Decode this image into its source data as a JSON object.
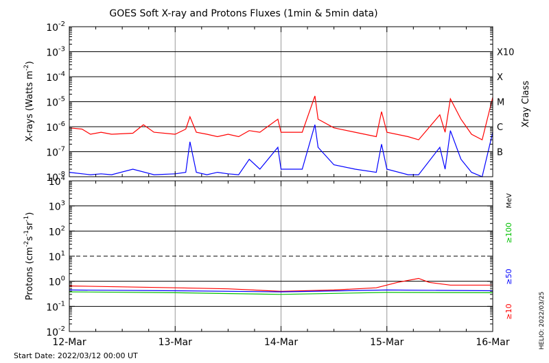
{
  "chart_data": [
    {
      "type": "line",
      "title": "GOES Soft X-ray and Protons Fluxes   (1min & 5min data)",
      "ylabel_main": "X-rays (Watts m",
      "ylabel_exp": "-2",
      "ylabel_close": ")",
      "y_scale": "log",
      "ylim": [
        1e-08,
        0.01
      ],
      "y_ticks": [
        {
          "base": "10",
          "exp": "-8"
        },
        {
          "base": "10",
          "exp": "-7"
        },
        {
          "base": "10",
          "exp": "-6"
        },
        {
          "base": "10",
          "exp": "-5"
        },
        {
          "base": "10",
          "exp": "-4"
        },
        {
          "base": "10",
          "exp": "-3"
        },
        {
          "base": "10",
          "exp": "-2"
        }
      ],
      "right_label": "Xray Class",
      "class_labels": [
        "B",
        "C",
        "M",
        "X",
        "X10"
      ],
      "grid": true,
      "series": [
        {
          "color": "#ff0000",
          "x": [
            0,
            0.12,
            0.2,
            0.3,
            0.4,
            0.6,
            0.7,
            0.8,
            1.0,
            1.1,
            1.14,
            1.2,
            1.3,
            1.4,
            1.5,
            1.6,
            1.7,
            1.8,
            1.97,
            2.0,
            2.2,
            2.32,
            2.35,
            2.5,
            2.7,
            2.9,
            2.95,
            3.0,
            3.2,
            3.3,
            3.5,
            3.55,
            3.6,
            3.7,
            3.8,
            3.9,
            4.0
          ],
          "values": [
            9e-07,
            8e-07,
            5e-07,
            6e-07,
            5e-07,
            5.5e-07,
            1.2e-06,
            6e-07,
            5e-07,
            8e-07,
            2.5e-06,
            6e-07,
            5e-07,
            4e-07,
            5e-07,
            4e-07,
            7e-07,
            6e-07,
            2e-06,
            6e-07,
            6e-07,
            1.7e-05,
            2e-06,
            9e-07,
            6e-07,
            4e-07,
            4e-06,
            6e-07,
            4e-07,
            3e-07,
            3e-06,
            6e-07,
            1.3e-05,
            2e-06,
            5e-07,
            3e-07,
            1.5e-05
          ]
        },
        {
          "color": "#0000ff",
          "x": [
            0,
            0.2,
            0.3,
            0.4,
            0.6,
            0.8,
            1.0,
            1.1,
            1.14,
            1.2,
            1.3,
            1.4,
            1.5,
            1.6,
            1.7,
            1.8,
            1.97,
            2.0,
            2.2,
            2.32,
            2.35,
            2.5,
            2.7,
            2.9,
            2.95,
            3.0,
            3.2,
            3.3,
            3.5,
            3.55,
            3.6,
            3.7,
            3.8,
            3.9,
            4.0
          ],
          "values": [
            1.5e-08,
            1.2e-08,
            1.3e-08,
            1.2e-08,
            2e-08,
            1.2e-08,
            1.3e-08,
            1.5e-08,
            2.5e-07,
            1.5e-08,
            1.2e-08,
            1.5e-08,
            1.3e-08,
            1.2e-08,
            5e-08,
            2e-08,
            1.5e-07,
            2e-08,
            2e-08,
            1.2e-06,
            1.5e-07,
            3e-08,
            2e-08,
            1.5e-08,
            2e-07,
            2e-08,
            1.2e-08,
            1.2e-08,
            1.5e-07,
            2e-08,
            7e-07,
            5e-08,
            1.5e-08,
            1e-08,
            6e-07
          ]
        }
      ]
    },
    {
      "type": "line",
      "ylabel_main": "Protons (cm",
      "ylabel_exp1": "-2",
      "ylabel_mid": "s",
      "ylabel_exp2": "-1",
      "ylabel_mid2": "sr",
      "ylabel_exp3": "-1",
      "ylabel_close": ")",
      "y_scale": "log",
      "ylim": [
        0.01,
        10000
      ],
      "y_ticks": [
        {
          "base": "10",
          "exp": "-2"
        },
        {
          "base": "10",
          "exp": "-1"
        },
        {
          "base": "10",
          "exp": "0"
        },
        {
          "base": "10",
          "exp": "1"
        },
        {
          "base": "10",
          "exp": "2"
        },
        {
          "base": "10",
          "exp": "3"
        },
        {
          "base": "10",
          "exp": "4"
        }
      ],
      "dashed_line_value": 10,
      "units": "MeV",
      "energy_labels": [
        {
          "text": "≥100",
          "color": "#00c000"
        },
        {
          "text": "≥50",
          "color": "#0000ff"
        },
        {
          "text": "≥10",
          "color": "#ff0000"
        }
      ],
      "grid": true,
      "series": [
        {
          "color": "#ff0000",
          "x": [
            0,
            0.5,
            1.0,
            1.5,
            2.0,
            2.5,
            2.9,
            3.1,
            3.3,
            3.4,
            3.6,
            4.0
          ],
          "values": [
            0.65,
            0.6,
            0.55,
            0.5,
            0.4,
            0.45,
            0.55,
            0.9,
            1.3,
            0.9,
            0.7,
            0.7
          ]
        },
        {
          "color": "#0000ff",
          "x": [
            0,
            1.0,
            2.0,
            3.0,
            4.0
          ],
          "values": [
            0.45,
            0.42,
            0.38,
            0.45,
            0.42
          ]
        },
        {
          "color": "#00c000",
          "x": [
            0,
            1.0,
            2.0,
            3.0,
            4.0
          ],
          "values": [
            0.38,
            0.35,
            0.3,
            0.36,
            0.35
          ]
        }
      ]
    }
  ],
  "x_axis": {
    "range": [
      0,
      4
    ],
    "tick_labels": [
      "12-Mar",
      "13-Mar",
      "14-Mar",
      "15-Mar",
      "16-Mar"
    ]
  },
  "footer": {
    "start_date": "Start Date: 2022/03/12 00:00 UT",
    "credit": "HELIO: 2022/03/25"
  }
}
